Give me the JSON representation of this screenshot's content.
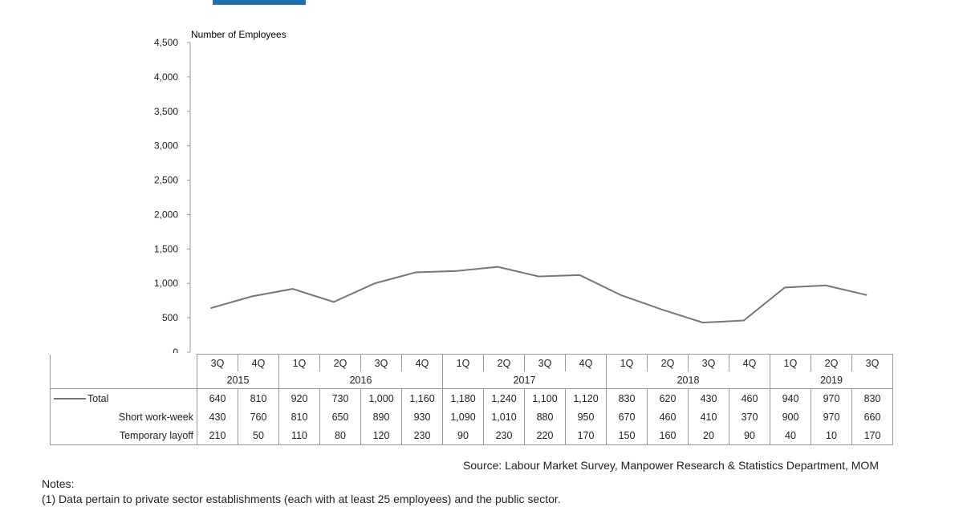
{
  "chart_data": {
    "type": "line",
    "ylabel": "Number of Employees",
    "ylim": [
      0,
      4500
    ],
    "yticks": [
      "0",
      "500",
      "1,000",
      "1,500",
      "2,000",
      "2,500",
      "3,000",
      "3,500",
      "4,000",
      "4,500"
    ],
    "grid": false,
    "categories": [
      "3Q",
      "4Q",
      "1Q",
      "2Q",
      "3Q",
      "4Q",
      "1Q",
      "2Q",
      "3Q",
      "4Q",
      "1Q",
      "2Q",
      "3Q",
      "4Q",
      "1Q",
      "2Q",
      "3Q"
    ],
    "years": [
      {
        "label": "2015",
        "span": 2
      },
      {
        "label": "2016",
        "span": 4
      },
      {
        "label": "2017",
        "span": 4
      },
      {
        "label": "2018",
        "span": 4
      },
      {
        "label": "2019",
        "span": 3
      }
    ],
    "series": [
      {
        "name": "Total",
        "plotted": true,
        "color": "#777777",
        "values": [
          640,
          810,
          920,
          730,
          1000,
          1160,
          1180,
          1240,
          1100,
          1120,
          830,
          620,
          430,
          460,
          940,
          970,
          830
        ],
        "labels": [
          "640",
          "810",
          "920",
          "730",
          "1,000",
          "1,160",
          "1,180",
          "1,240",
          "1,100",
          "1,120",
          "830",
          "620",
          "430",
          "460",
          "940",
          "970",
          "830"
        ]
      },
      {
        "name": "Short work-week",
        "plotted": false,
        "values": [
          430,
          760,
          810,
          650,
          890,
          930,
          1090,
          1010,
          880,
          950,
          670,
          460,
          410,
          370,
          900,
          970,
          660
        ],
        "labels": [
          "430",
          "760",
          "810",
          "650",
          "890",
          "930",
          "1,090",
          "1,010",
          "880",
          "950",
          "670",
          "460",
          "410",
          "370",
          "900",
          "970",
          "660"
        ]
      },
      {
        "name": "Temporary layoff",
        "plotted": false,
        "values": [
          210,
          50,
          110,
          80,
          120,
          230,
          90,
          230,
          220,
          170,
          150,
          160,
          20,
          90,
          40,
          10,
          170
        ],
        "labels": [
          "210",
          "50",
          "110",
          "80",
          "120",
          "230",
          "90",
          "230",
          "220",
          "170",
          "150",
          "160",
          "20",
          "90",
          "40",
          "10",
          "170"
        ]
      }
    ]
  },
  "source": "Source: Labour Market Survey, Manpower Research & Statistics Department, MOM",
  "notes": {
    "heading": "Notes:",
    "items": [
      "(1)  Data pertain to private sector establishments (each with at least 25 employees) and the public sector."
    ]
  },
  "colors": {
    "title_box": "#1f6fae",
    "line": "#777777"
  }
}
